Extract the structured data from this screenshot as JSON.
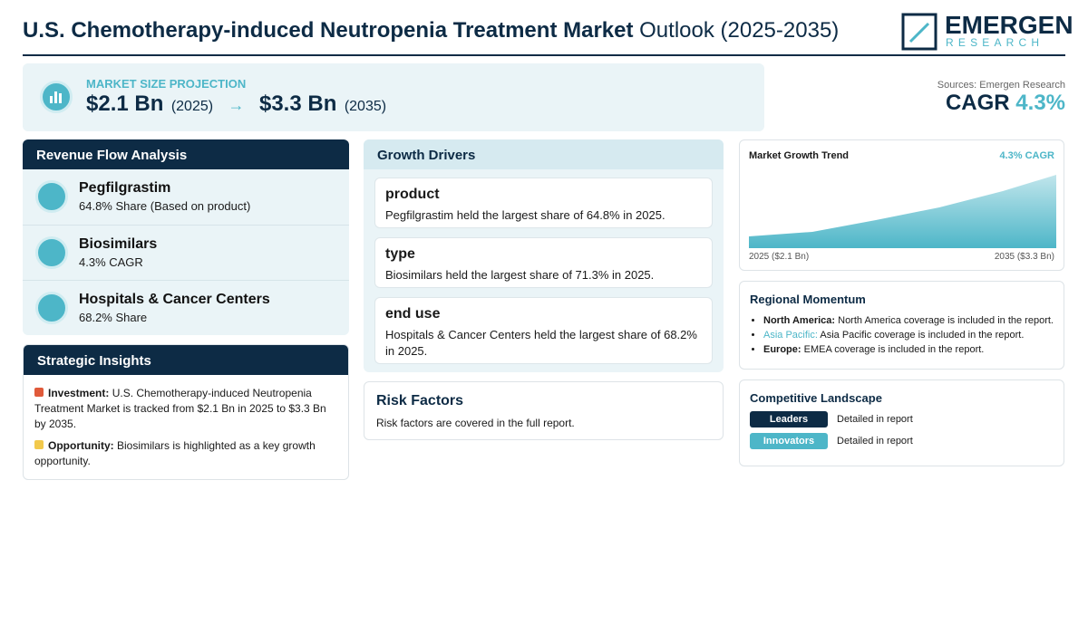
{
  "header": {
    "title_bold": "U.S. Chemotherapy-induced Neutropenia Treatment Market",
    "title_rest": "Outlook (2025-2035)",
    "logo_top": "EMERGEN",
    "logo_bottom": "RESEARCH"
  },
  "projection": {
    "label": "MARKET SIZE PROJECTION",
    "start_value": "$2.1 Bn",
    "start_year": "(2025)",
    "arrow": "→",
    "end_value": "$3.3 Bn",
    "end_year": "(2035)"
  },
  "sources": "Sources: Emergen Research",
  "cagr": {
    "label": "CAGR",
    "value": "4.3%"
  },
  "revenue_flow": {
    "title": "Revenue Flow Analysis",
    "items": [
      {
        "name": "Pegfilgrastim",
        "detail": "64.8% Share (Based on product)"
      },
      {
        "name": "Biosimilars",
        "detail": "4.3% CAGR"
      },
      {
        "name": "Hospitals & Cancer Centers",
        "detail": "68.2% Share"
      }
    ]
  },
  "strategic_insights": {
    "title": "Strategic Insights",
    "items": [
      {
        "label": "Investment:",
        "text": "U.S. Chemotherapy-induced Neutropenia Treatment Market is tracked from $2.1 Bn in 2025 to $3.3 Bn by 2035."
      },
      {
        "label": "Opportunity:",
        "text": "Biosimilars is highlighted as a key growth opportunity."
      }
    ]
  },
  "growth_drivers": {
    "title": "Growth Drivers",
    "items": [
      {
        "heading": "product",
        "text": "Pegfilgrastim held the largest share of 64.8% in 2025."
      },
      {
        "heading": "type",
        "text": "Biosimilars held the largest share of 71.3% in 2025."
      },
      {
        "heading": "end use",
        "text": "Hospitals & Cancer Centers held the largest share of 68.2% in 2025."
      }
    ]
  },
  "risk_factors": {
    "title": "Risk Factors",
    "text": "Risk factors are covered in the full report."
  },
  "market_growth_trend": {
    "title": "Market Growth Trend",
    "cagr": "4.3% CAGR",
    "start_label": "2025 ($2.1 Bn)",
    "end_label": "2035 ($3.3 Bn)"
  },
  "regional_momentum": {
    "title": "Regional Momentum",
    "items": [
      {
        "region": "North America:",
        "text": "North America coverage is included in the report."
      },
      {
        "region": "Asia Pacific:",
        "text": "Asia Pacific coverage is included in the report."
      },
      {
        "region": "Europe:",
        "text": "EMEA coverage is included in the report."
      }
    ]
  },
  "competitive_landscape": {
    "title": "Competitive Landscape",
    "items": [
      {
        "tag": "Leaders",
        "text": "Detailed in report"
      },
      {
        "tag": "Innovators",
        "text": "Detailed in report"
      }
    ]
  }
}
